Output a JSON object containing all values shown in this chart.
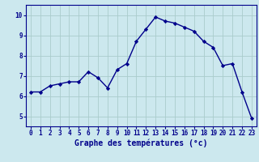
{
  "x": [
    0,
    1,
    2,
    3,
    4,
    5,
    6,
    7,
    8,
    9,
    10,
    11,
    12,
    13,
    14,
    15,
    16,
    17,
    18,
    19,
    20,
    21,
    22,
    23
  ],
  "y": [
    6.2,
    6.2,
    6.5,
    6.6,
    6.7,
    6.7,
    7.2,
    6.9,
    6.4,
    7.3,
    7.6,
    8.7,
    9.3,
    9.9,
    9.7,
    9.6,
    9.4,
    9.2,
    8.7,
    8.4,
    7.5,
    7.6,
    6.2,
    4.9
  ],
  "line_color": "#00008b",
  "marker": "D",
  "marker_size": 2.2,
  "xlabel": "Graphe des températures (°c)",
  "xlim": [
    -0.5,
    23.5
  ],
  "ylim": [
    4.5,
    10.5
  ],
  "xticks": [
    0,
    1,
    2,
    3,
    4,
    5,
    6,
    7,
    8,
    9,
    10,
    11,
    12,
    13,
    14,
    15,
    16,
    17,
    18,
    19,
    20,
    21,
    22,
    23
  ],
  "yticks": [
    5,
    6,
    7,
    8,
    9,
    10
  ],
  "bg_color": "#cce8ee",
  "grid_color": "#aacccc",
  "axes_color": "#00008b",
  "tick_label_fontsize": 5.5,
  "xlabel_fontsize": 7.0,
  "linewidth": 1.0
}
